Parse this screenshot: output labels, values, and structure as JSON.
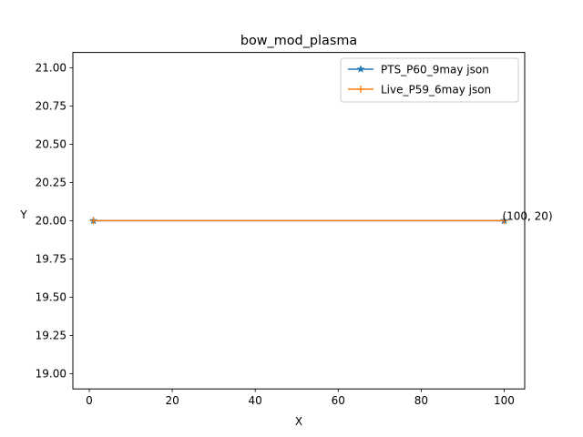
{
  "chart_data": {
    "type": "line",
    "title": "bow_mod_plasma",
    "xlabel": "X",
    "ylabel": "Y",
    "xlim": [
      -3.95,
      104.95
    ],
    "ylim": [
      18.9,
      21.1
    ],
    "xticks": [
      0,
      20,
      40,
      60,
      80,
      100
    ],
    "yticks": [
      19.0,
      19.25,
      19.5,
      19.75,
      20.0,
      20.25,
      20.5,
      20.75,
      21.0
    ],
    "ytick_labels": [
      "19.00",
      "19.25",
      "19.50",
      "19.75",
      "20.00",
      "20.25",
      "20.50",
      "20.75",
      "21.00"
    ],
    "legend_position": "top-right",
    "series": [
      {
        "name": "PTS_P60_9may json",
        "x": [
          1,
          100
        ],
        "y": [
          20,
          20
        ],
        "color": "#1f77b4",
        "marker": "star"
      },
      {
        "name": "Live_P59_6may json",
        "x": [
          1,
          100
        ],
        "y": [
          20,
          20
        ],
        "color": "#ff7f0e",
        "marker": "plus"
      }
    ],
    "annotations": [
      {
        "x": 100,
        "y": 20,
        "text": "(100, 20)"
      }
    ]
  }
}
